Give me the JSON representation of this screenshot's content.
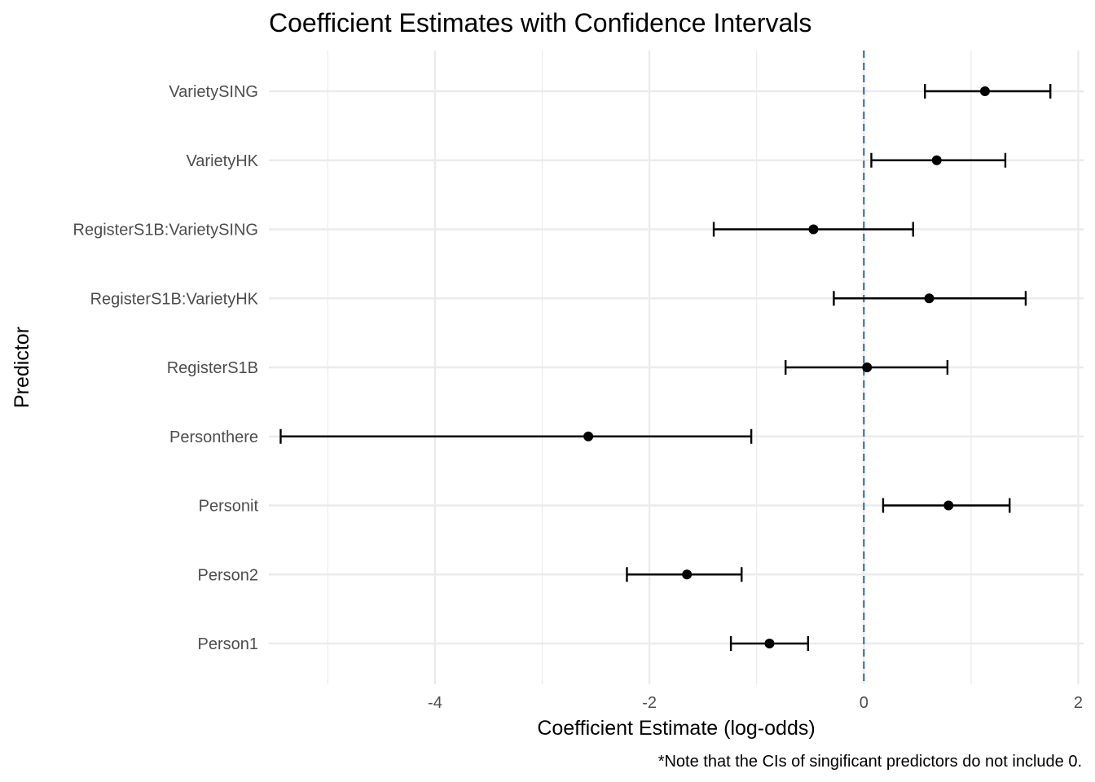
{
  "chart_data": {
    "type": "errorbar",
    "title": "Coefficient Estimates with Confidence Intervals",
    "xlabel": "Coefficient Estimate (log-odds)",
    "ylabel": "Predictor",
    "caption": "*Note that the CIs of singificant predictors do not include 0.",
    "xlim": [
      -5.55,
      2.05
    ],
    "x_ticks": [
      -4,
      -2,
      0,
      2
    ],
    "x_tick_labels": [
      "-4",
      "-2",
      "0",
      "2"
    ],
    "x_minor_ticks": [
      -5,
      -3,
      -1,
      1
    ],
    "reference_line": {
      "x": 0,
      "color": "#4a7cb0",
      "style": "dashed"
    },
    "grid": true,
    "series": [
      {
        "predictor": "VarietySING",
        "estimate": 1.13,
        "ci_low": 0.57,
        "ci_high": 1.74
      },
      {
        "predictor": "VarietyHK",
        "estimate": 0.68,
        "ci_low": 0.07,
        "ci_high": 1.32
      },
      {
        "predictor": "RegisterS1B:VarietySING",
        "estimate": -0.47,
        "ci_low": -1.4,
        "ci_high": 0.46
      },
      {
        "predictor": "RegisterS1B:VarietyHK",
        "estimate": 0.61,
        "ci_low": -0.28,
        "ci_high": 1.51
      },
      {
        "predictor": "RegisterS1B",
        "estimate": 0.03,
        "ci_low": -0.73,
        "ci_high": 0.78
      },
      {
        "predictor": "Personthere",
        "estimate": -2.57,
        "ci_low": -5.44,
        "ci_high": -1.05
      },
      {
        "predictor": "Personit",
        "estimate": 0.79,
        "ci_low": 0.18,
        "ci_high": 1.36
      },
      {
        "predictor": "Person2",
        "estimate": -1.65,
        "ci_low": -2.21,
        "ci_high": -1.14
      },
      {
        "predictor": "Person1",
        "estimate": -0.88,
        "ci_low": -1.24,
        "ci_high": -0.52
      }
    ],
    "colors": {
      "points": "#000000",
      "grid": "#ebebeb",
      "tick_text": "#4d4d4d"
    }
  }
}
